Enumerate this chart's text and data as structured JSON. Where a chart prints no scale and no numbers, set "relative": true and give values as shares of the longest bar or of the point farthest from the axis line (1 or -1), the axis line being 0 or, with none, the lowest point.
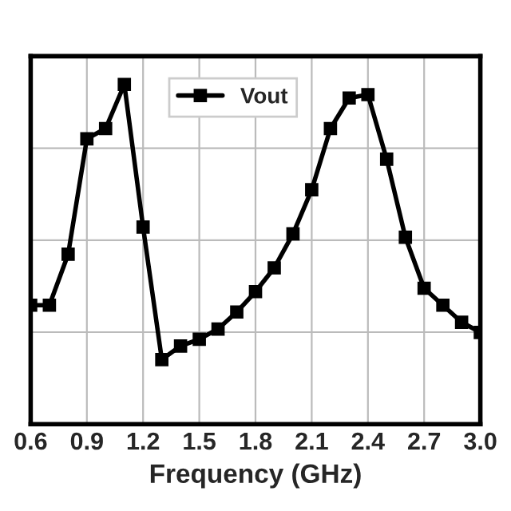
{
  "chart_data": {
    "type": "line",
    "xlabel": "Frequency (GHz)",
    "relative": true,
    "x": [
      0.6,
      0.7,
      0.8,
      0.9,
      1.0,
      1.1,
      1.2,
      1.3,
      1.4,
      1.5,
      1.6,
      1.7,
      1.8,
      1.9,
      2.0,
      2.1,
      2.2,
      2.3,
      2.4,
      2.5,
      2.6,
      2.7,
      2.8,
      2.9,
      3.0
    ],
    "series": [
      {
        "name": "Vout",
        "color": "#000000",
        "values": [
          0.35,
          0.35,
          0.5,
          0.84,
          0.87,
          1,
          0.58,
          0.19,
          0.23,
          0.25,
          0.28,
          0.33,
          0.39,
          0.46,
          0.56,
          0.69,
          0.87,
          0.96,
          0.97,
          0.78,
          0.55,
          0.4,
          0.35,
          0.3,
          0.27
        ]
      }
    ],
    "xlim": [
      0.6,
      3.0
    ],
    "xticks": [
      {
        "value": 0.6,
        "label": "0.6"
      },
      {
        "value": 0.9,
        "label": "0.9"
      },
      {
        "value": 1.2,
        "label": "1.2"
      },
      {
        "value": 1.5,
        "label": "1.5"
      },
      {
        "value": 1.8,
        "label": "1.8"
      },
      {
        "value": 2.1,
        "label": "2.1"
      },
      {
        "value": 2.4,
        "label": "2.4"
      },
      {
        "value": 2.7,
        "label": "2.7"
      },
      {
        "value": 3.0,
        "label": "3.0"
      }
    ],
    "grid": true,
    "legend": "top",
    "marker": "square",
    "line_style": "solid"
  }
}
